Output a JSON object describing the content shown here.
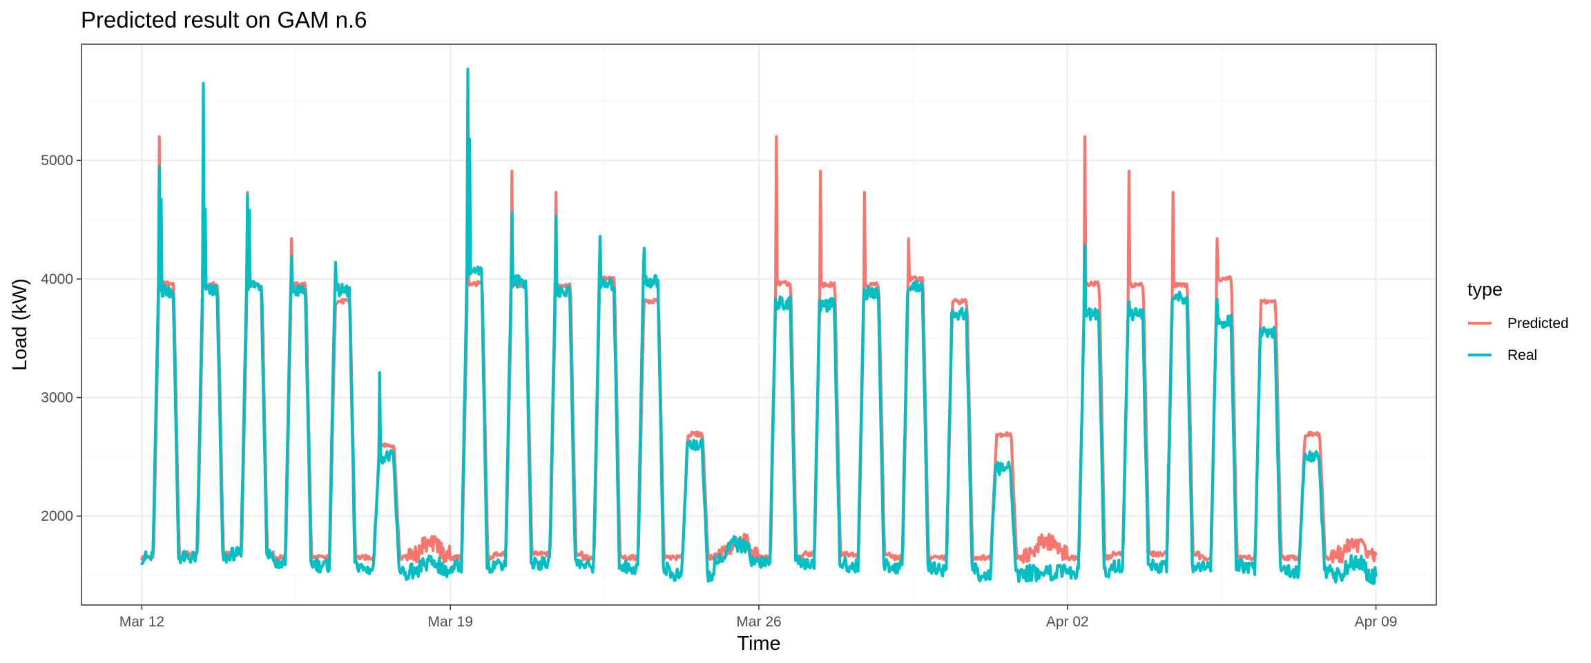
{
  "chart_data": {
    "type": "line",
    "title": "Predicted result on GAM n.6",
    "xlabel": "Time",
    "ylabel": "Load (kW)",
    "legend_title": "type",
    "legend_position": "right",
    "grid": true,
    "x_ticks": [
      {
        "label": "Mar 12",
        "day": 0
      },
      {
        "label": "Mar 19",
        "day": 7
      },
      {
        "label": "Mar 26",
        "day": 14
      },
      {
        "label": "Apr 02",
        "day": 21
      },
      {
        "label": "Apr 09",
        "day": 28
      }
    ],
    "y_ticks": [
      2000,
      3000,
      4000,
      5000
    ],
    "xlim_days": [
      -1.37,
      29.37
    ],
    "ylim": [
      1250,
      5980
    ],
    "series": [
      {
        "name": "Predicted",
        "color": "#F8766D",
        "days": [
          {
            "base": 1650,
            "peak": 3960,
            "spikes": [
              5200
            ]
          },
          {
            "base": 1680,
            "peak": 3950,
            "spikes": [
              5200
            ]
          },
          {
            "base": 1680,
            "peak": 3950,
            "spikes": [
              4730
            ]
          },
          {
            "base": 1650,
            "peak": 3950,
            "spikes": [
              4340
            ]
          },
          {
            "base": 1650,
            "peak": 3810,
            "spikes": []
          },
          {
            "base": 1650,
            "peak": 2600,
            "spikes": []
          },
          {
            "base": 1680,
            "peak": 1760,
            "spikes": []
          },
          {
            "base": 1650,
            "peak": 3960,
            "spikes": [
              5200
            ]
          },
          {
            "base": 1680,
            "peak": 3950,
            "spikes": [
              4910
            ]
          },
          {
            "base": 1680,
            "peak": 3950,
            "spikes": [
              4730
            ]
          },
          {
            "base": 1650,
            "peak": 4000,
            "spikes": [
              4340
            ]
          },
          {
            "base": 1650,
            "peak": 3810,
            "spikes": []
          },
          {
            "base": 1650,
            "peak": 2690,
            "spikes": []
          },
          {
            "base": 1680,
            "peak": 1780,
            "spikes": []
          },
          {
            "base": 1650,
            "peak": 3960,
            "spikes": [
              5200
            ]
          },
          {
            "base": 1680,
            "peak": 3950,
            "spikes": [
              4910
            ]
          },
          {
            "base": 1680,
            "peak": 3950,
            "spikes": [
              4730
            ]
          },
          {
            "base": 1650,
            "peak": 4000,
            "spikes": [
              4340
            ]
          },
          {
            "base": 1650,
            "peak": 3810,
            "spikes": []
          },
          {
            "base": 1650,
            "peak": 2690,
            "spikes": []
          },
          {
            "base": 1680,
            "peak": 1780,
            "spikes": []
          },
          {
            "base": 1650,
            "peak": 3960,
            "spikes": [
              5200
            ]
          },
          {
            "base": 1680,
            "peak": 3950,
            "spikes": [
              4910
            ]
          },
          {
            "base": 1680,
            "peak": 3950,
            "spikes": [
              4730
            ]
          },
          {
            "base": 1650,
            "peak": 4000,
            "spikes": [
              4340
            ]
          },
          {
            "base": 1650,
            "peak": 3810,
            "spikes": []
          },
          {
            "base": 1650,
            "peak": 2690,
            "spikes": []
          },
          {
            "base": 1680,
            "peak": 1760,
            "spikes": []
          }
        ]
      },
      {
        "name": "Real",
        "color": "#00BFC4",
        "days": [
          {
            "base": 1650,
            "peak": 3900,
            "spikes": [
              4950,
              4670
            ]
          },
          {
            "base": 1650,
            "peak": 3900,
            "spikes": [
              5650,
              4590
            ]
          },
          {
            "base": 1680,
            "peak": 3950,
            "spikes": [
              4710,
              4580
            ]
          },
          {
            "base": 1600,
            "peak": 3900,
            "spikes": [
              4190
            ]
          },
          {
            "base": 1580,
            "peak": 3900,
            "spikes": [
              4140
            ]
          },
          {
            "base": 1550,
            "peak": 2500,
            "spikes": [
              3210
            ]
          },
          {
            "base": 1530,
            "peak": 1600,
            "spikes": []
          },
          {
            "base": 1580,
            "peak": 4050,
            "spikes": [
              5770,
              5180
            ]
          },
          {
            "base": 1600,
            "peak": 3980,
            "spikes": [
              4560
            ]
          },
          {
            "base": 1600,
            "peak": 3900,
            "spikes": [
              4530
            ]
          },
          {
            "base": 1580,
            "peak": 3950,
            "spikes": [
              4360
            ]
          },
          {
            "base": 1560,
            "peak": 3980,
            "spikes": [
              4260
            ]
          },
          {
            "base": 1500,
            "peak": 2600,
            "spikes": []
          },
          {
            "base": 1650,
            "peak": 1760,
            "spikes": []
          },
          {
            "base": 1620,
            "peak": 3800,
            "spikes": []
          },
          {
            "base": 1600,
            "peak": 3780,
            "spikes": []
          },
          {
            "base": 1580,
            "peak": 3880,
            "spikes": []
          },
          {
            "base": 1570,
            "peak": 3930,
            "spikes": []
          },
          {
            "base": 1550,
            "peak": 3700,
            "spikes": []
          },
          {
            "base": 1500,
            "peak": 2400,
            "spikes": []
          },
          {
            "base": 1520,
            "peak": 1530,
            "spikes": []
          },
          {
            "base": 1520,
            "peak": 3700,
            "spikes": [
              4280
            ]
          },
          {
            "base": 1580,
            "peak": 3700,
            "spikes": [
              3810
            ]
          },
          {
            "base": 1580,
            "peak": 3850,
            "spikes": []
          },
          {
            "base": 1580,
            "peak": 3640,
            "spikes": [
              3830
            ]
          },
          {
            "base": 1560,
            "peak": 3560,
            "spikes": []
          },
          {
            "base": 1530,
            "peak": 2500,
            "spikes": []
          },
          {
            "base": 1500,
            "peak": 1600,
            "spikes": []
          }
        ]
      }
    ]
  }
}
